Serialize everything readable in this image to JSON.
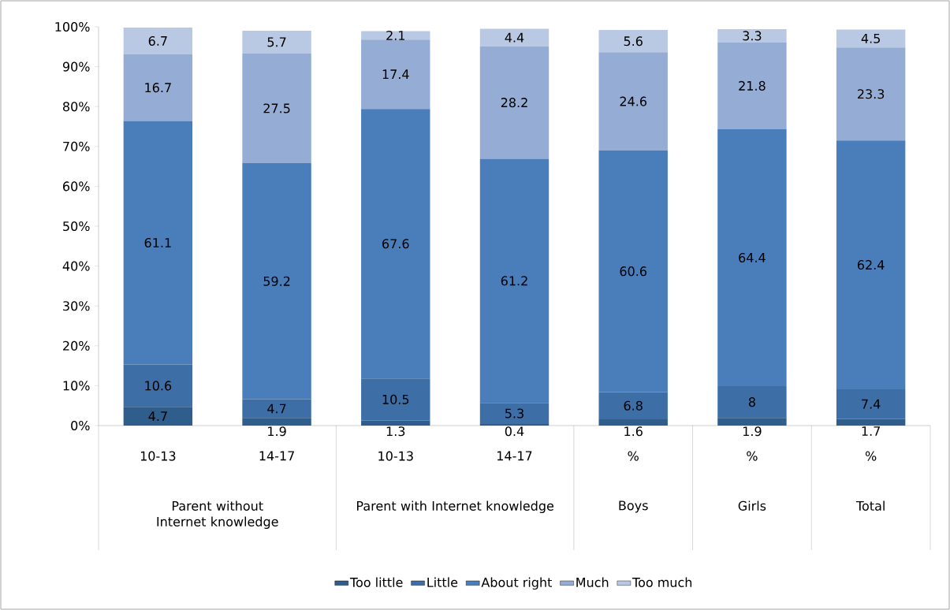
{
  "chart_data": {
    "type": "bar",
    "stacked": true,
    "data_labels": true,
    "legend": "bottom",
    "grid": false,
    "categories": [
      "10-13",
      "14-17",
      "10-13",
      "14-17",
      "%",
      "%",
      "%"
    ],
    "annotations": [
      "Parent without Internet knowledge",
      "Parent with Internet knowledge",
      "Boys",
      "Girls",
      "Total"
    ],
    "ylim": [
      0,
      100
    ],
    "yticks": [
      {
        "value": 0,
        "label": "0%"
      },
      {
        "value": 10,
        "label": "10%"
      },
      {
        "value": 20,
        "label": "20%"
      },
      {
        "value": 30,
        "label": "30%"
      },
      {
        "value": 40,
        "label": "40%"
      },
      {
        "value": 50,
        "label": "50%"
      },
      {
        "value": 60,
        "label": "60%"
      },
      {
        "value": 70,
        "label": "70%"
      },
      {
        "value": 80,
        "label": "80%"
      },
      {
        "value": 90,
        "label": "90%"
      },
      {
        "value": 100,
        "label": "100%"
      }
    ],
    "series": [
      {
        "name": "Too little",
        "color": "#2f5d8c",
        "values": [
          4.7,
          1.9,
          1.3,
          0.4,
          1.6,
          1.9,
          1.7
        ]
      },
      {
        "name": "Little",
        "color": "#3d6fa6",
        "values": [
          10.6,
          4.7,
          10.5,
          5.3,
          6.8,
          8,
          7.4
        ]
      },
      {
        "name": "About right",
        "color": "#4a7ebb",
        "values": [
          61.1,
          59.2,
          67.6,
          61.2,
          60.6,
          64.4,
          62.4
        ]
      },
      {
        "name": "Much",
        "color": "#95acd4",
        "values": [
          16.7,
          27.5,
          17.4,
          28.2,
          24.6,
          21.8,
          23.3
        ]
      },
      {
        "name": "Too much",
        "color": "#b9c9e4",
        "values": [
          6.7,
          5.7,
          2.1,
          4.4,
          5.6,
          3.3,
          4.5
        ]
      }
    ]
  }
}
